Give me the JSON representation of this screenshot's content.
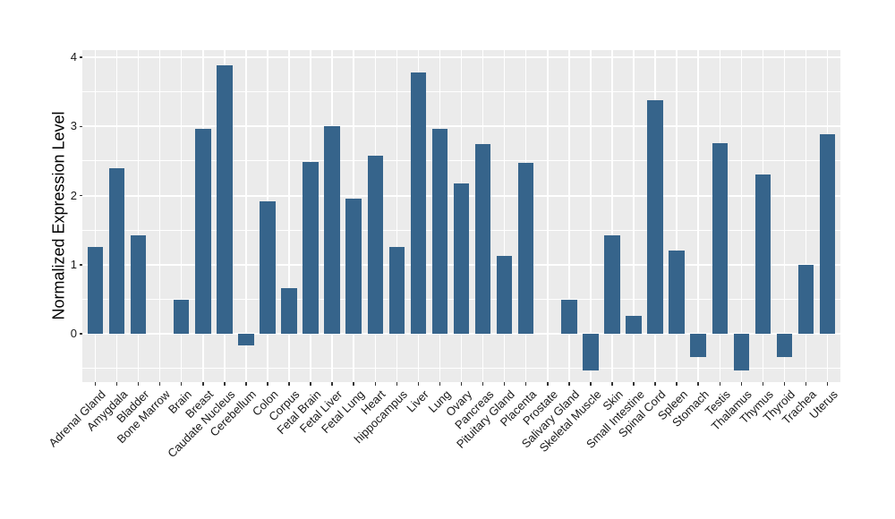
{
  "chart_data": {
    "type": "bar",
    "title": "",
    "xlabel": "",
    "ylabel": "Normalized Expression Level",
    "categories": [
      "Adrenal Gland",
      "Amygdala",
      "Bladder",
      "Bone Marrow",
      "Brain",
      "Breast",
      "Caudate Nucleus",
      "Cerebellum",
      "Colon",
      "Corpus",
      "Fetal Brain",
      "Fetal Liver",
      "Fetal Lung",
      "Heart",
      "hippocampus",
      "Liver",
      "Lung",
      "Ovary",
      "Pancreas",
      "Pituitary Gland",
      "Placenta",
      "Prostate",
      "Salivary Gland",
      "Skeletal Muscle",
      "Skin",
      "Small Intestine",
      "Spinal Cord",
      "Spleen",
      "Stomach",
      "Testis",
      "Thalamus",
      "Thymus",
      "Thyroid",
      "Trachea",
      "Uterus"
    ],
    "values": [
      1.26,
      2.4,
      1.42,
      0.0,
      0.49,
      2.97,
      3.88,
      -0.17,
      1.92,
      0.66,
      2.48,
      3.0,
      1.96,
      2.58,
      1.26,
      3.78,
      2.97,
      2.17,
      2.74,
      1.13,
      2.47,
      0.0,
      0.49,
      -0.53,
      1.43,
      0.26,
      3.38,
      1.2,
      -0.34,
      2.76,
      -0.53,
      2.3,
      -0.34,
      1.0,
      2.89
    ],
    "yticks": [
      0,
      1,
      2,
      3,
      4
    ],
    "yticklabels": [
      "0",
      "1",
      "2",
      "3",
      "4"
    ],
    "ylim": [
      -0.72,
      4.1
    ],
    "grid": "on",
    "legend_position": "none",
    "colors": {
      "bar_fill": "#36648B",
      "panel_background": "#EBEBEB",
      "gridline": "#FFFFFF",
      "axis_text": "#1A1A1A",
      "axis_title": "#000000",
      "tick_mark": "#333333",
      "page_background": "#FFFFFF"
    }
  }
}
